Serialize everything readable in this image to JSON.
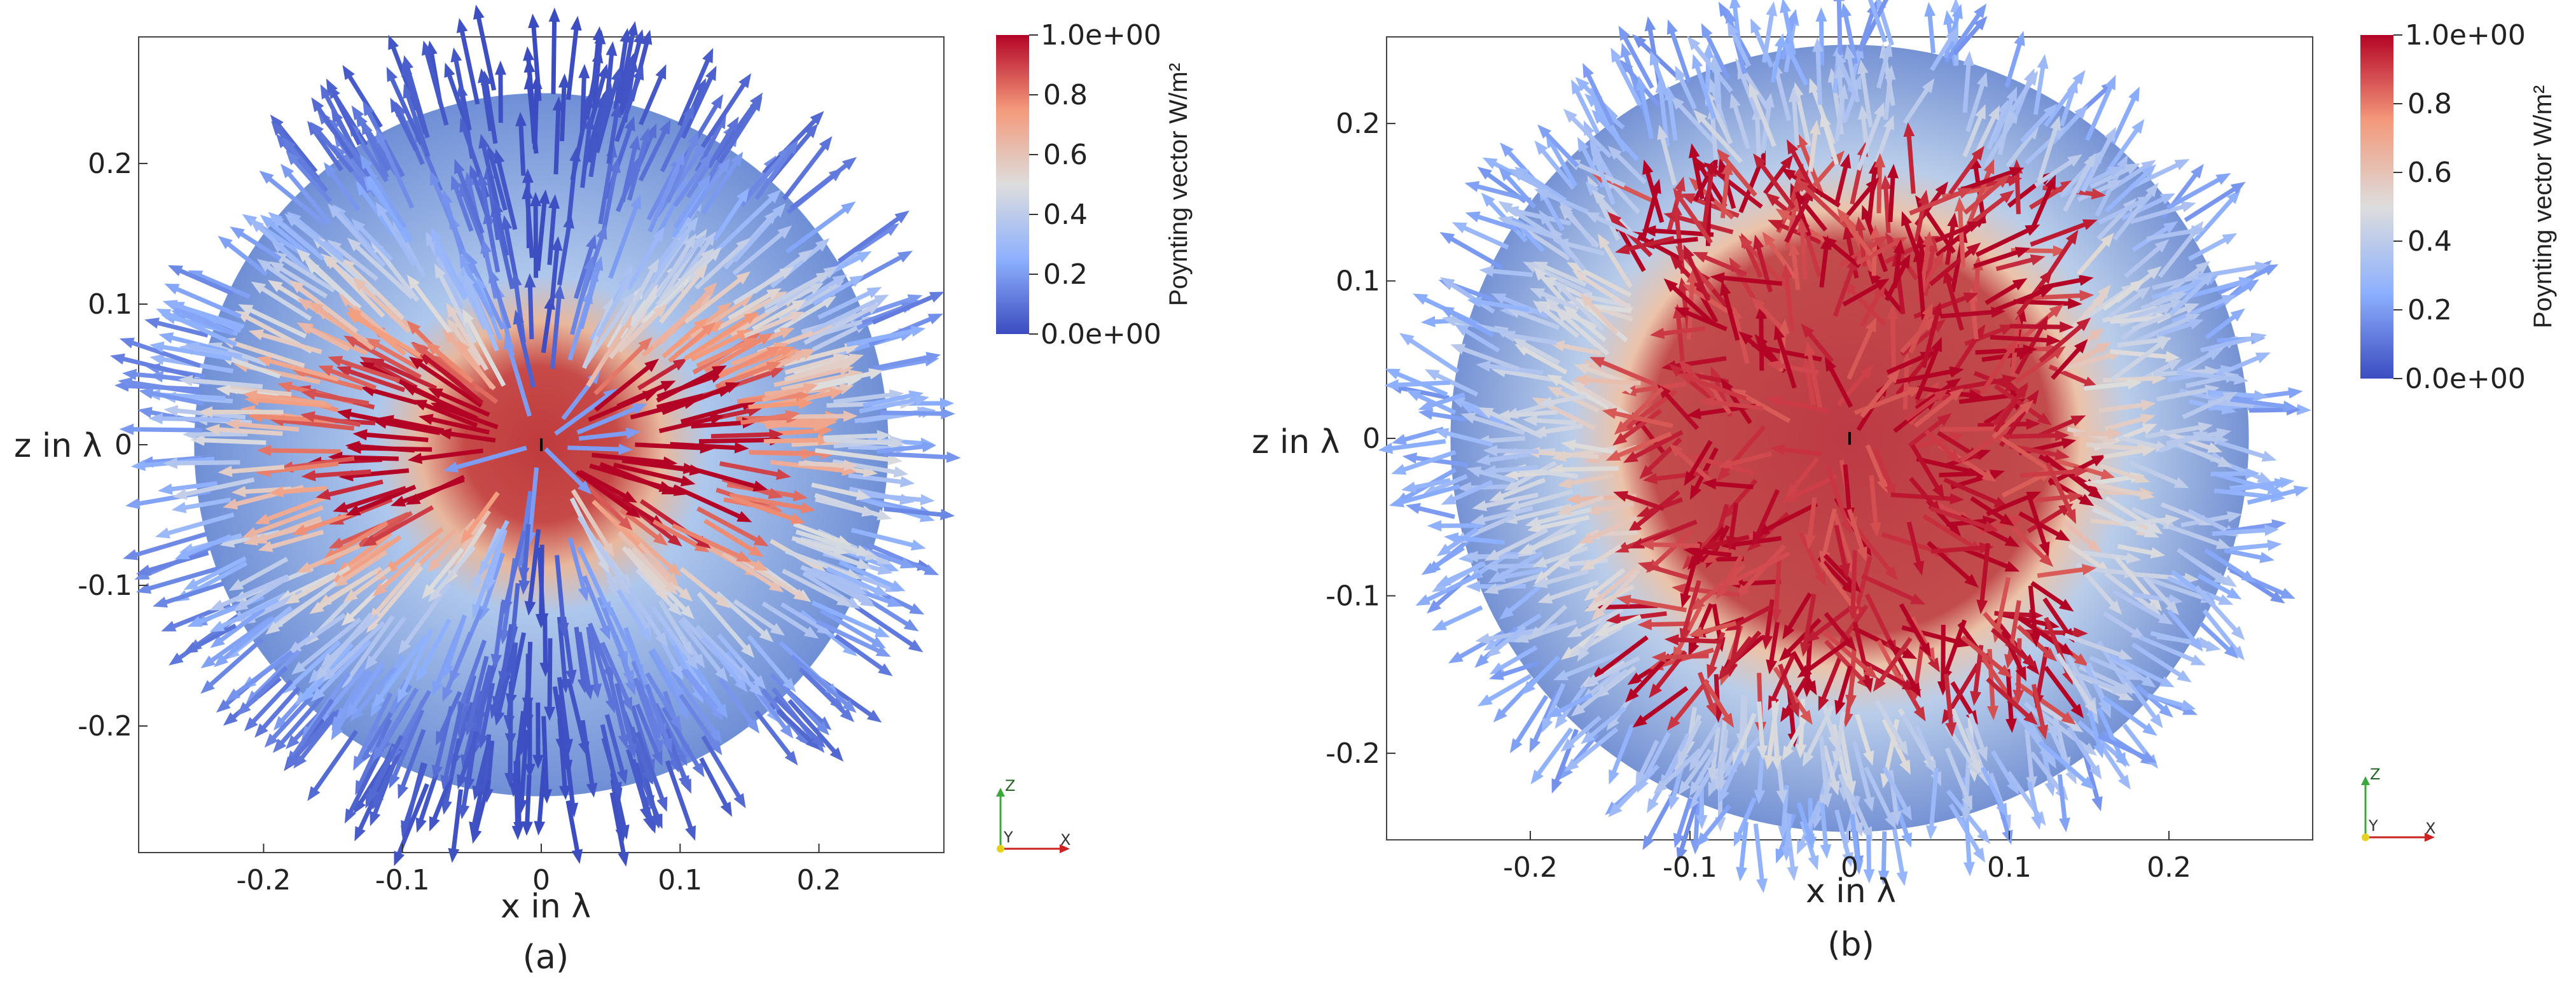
{
  "chart_data": [
    {
      "type": "vector-field",
      "panel_label": "(a)",
      "xlabel": "x in λ",
      "zlabel": "z in λ",
      "xlim": [
        -0.29,
        0.29
      ],
      "zlim": [
        -0.29,
        0.29
      ],
      "x_ticks": [
        -0.2,
        -0.1,
        0,
        0.1,
        0.2
      ],
      "x_tick_labels": [
        "-0.2",
        "-0.1",
        "0",
        "0.1",
        "0.2"
      ],
      "z_ticks": [
        0.2,
        0.1,
        0,
        -0.1,
        -0.2
      ],
      "z_tick_labels": [
        "0.2",
        "0.1",
        "0",
        "-0.1",
        "-0.2"
      ],
      "domain_radius": 0.25,
      "field_pattern": "radial outflow from centre dipole; magnitude high near equatorial lobes, low near poles",
      "colorbar": {
        "title": "Poynting vector W/m²",
        "range": [
          0,
          1
        ],
        "ticks": [
          1.0,
          0.8,
          0.6,
          0.4,
          0.2,
          0.0
        ],
        "tick_labels": [
          "1.0e+00",
          "0.8",
          "0.6",
          "0.4",
          "0.2",
          "0.0e+00"
        ]
      },
      "orientation_axes": [
        "Z",
        "X",
        "Y"
      ]
    },
    {
      "type": "vector-field",
      "panel_label": "(b)",
      "xlabel": "x in λ",
      "zlabel": "z in λ",
      "xlim": [
        -0.29,
        0.29
      ],
      "zlim": [
        -0.255,
        0.255
      ],
      "x_ticks": [
        -0.2,
        -0.1,
        0,
        0.1,
        0.2
      ],
      "x_tick_labels": [
        "-0.2",
        "-0.1",
        "0",
        "0.1",
        "0.2"
      ],
      "z_ticks": [
        0.2,
        0.1,
        0,
        -0.1,
        -0.2
      ],
      "z_tick_labels": [
        "0.2",
        "0.1",
        "0",
        "-0.1",
        "-0.2"
      ],
      "domain_radius": 0.25,
      "field_pattern": "mixed-direction vectors; high-magnitude core within |x|<0.13, lower magnitude toward boundary",
      "colorbar": {
        "title": "Poynting vector W/m²",
        "range": [
          0,
          1
        ],
        "ticks": [
          1.0,
          0.8,
          0.6,
          0.4,
          0.2,
          0.0
        ],
        "tick_labels": [
          "1.0e+00",
          "0.8",
          "0.6",
          "0.4",
          "0.2",
          "0.0e+00"
        ]
      },
      "orientation_axes": [
        "Z",
        "X",
        "Y"
      ]
    }
  ]
}
